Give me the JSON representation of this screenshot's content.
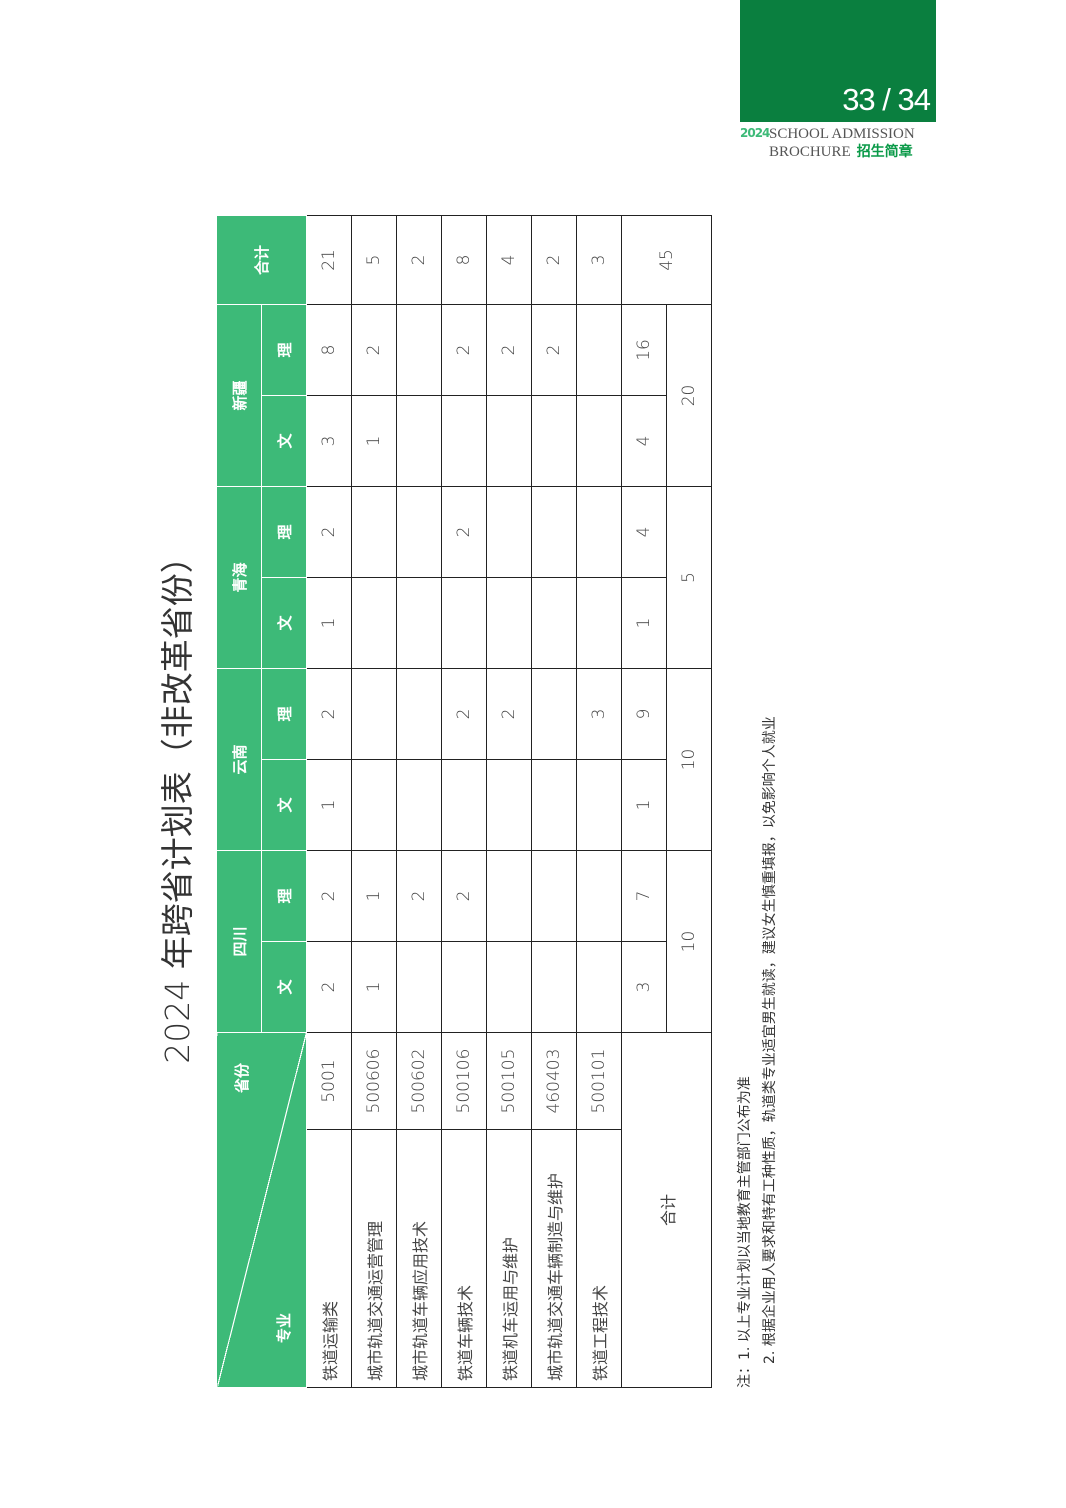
{
  "header": {
    "page": "33 / 34",
    "logo_year": "2024",
    "brand_line1": "SCHOOL ADMISSION",
    "brand_line2": "BROCHURE",
    "brand_cn": "招生简章"
  },
  "title": "2024 年跨省计划表（非改革省份）",
  "table": {
    "corner_major": "专业",
    "corner_province": "省份",
    "provinces": [
      "四川",
      "云南",
      "青海",
      "新疆"
    ],
    "wen": "文",
    "li": "理",
    "total_header": "合计",
    "rows": [
      {
        "name": "铁道运输类",
        "code": "5001",
        "values": [
          "2",
          "2",
          "1",
          "2",
          "1",
          "2",
          "3",
          "8",
          "21"
        ]
      },
      {
        "name": "城市轨道交通运营管理",
        "code": "500606",
        "values": [
          "1",
          "1",
          "",
          "",
          "",
          "",
          "1",
          "2",
          "5"
        ]
      },
      {
        "name": "城市轨道车辆应用技术",
        "code": "500602",
        "values": [
          "",
          "2",
          "",
          "",
          "",
          "",
          "",
          "",
          "2"
        ]
      },
      {
        "name": "铁道车辆技术",
        "code": "500106",
        "values": [
          "",
          "2",
          "",
          "2",
          "",
          "2",
          "",
          "2",
          "8"
        ]
      },
      {
        "name": "铁道机车运用与维护",
        "code": "500105",
        "values": [
          "",
          "",
          "",
          "2",
          "",
          "",
          "",
          "2",
          "4"
        ]
      },
      {
        "name": "城市轨道交通车辆制造与维护",
        "code": "460403",
        "values": [
          "",
          "",
          "",
          "",
          "",
          "",
          "",
          "2",
          "2"
        ]
      },
      {
        "name": "铁道工程技术",
        "code": "500101",
        "values": [
          "",
          "",
          "",
          "3",
          "",
          "",
          "",
          "",
          "3"
        ]
      }
    ],
    "total_label": "合计",
    "subtotals": [
      "3",
      "7",
      "1",
      "9",
      "1",
      "4",
      "4",
      "16"
    ],
    "province_totals": [
      "10",
      "10",
      "5",
      "20"
    ],
    "grand_total": "45"
  },
  "notes": [
    "注：1. 以上专业计划以当地教育主管部门公布为准",
    "2. 根据企业用人要求和特有工种性质，轨道类专业适宜男生就读，建议女生慎重填报，以免影响个人就业"
  ],
  "colors": {
    "banner": "#0a7f3f",
    "header": "#3dba78"
  }
}
